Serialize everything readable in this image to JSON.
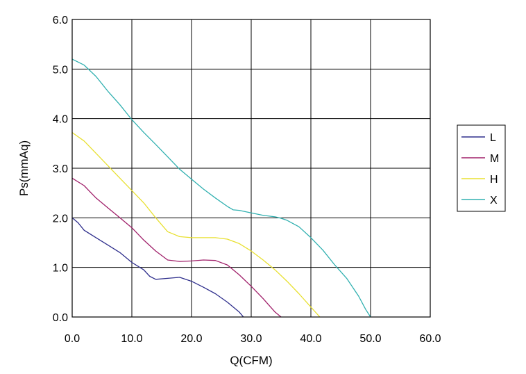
{
  "chart_data": {
    "type": "line",
    "xlabel": "Q(CFM)",
    "ylabel": "Ps(mmAq)",
    "xlim": [
      0,
      60
    ],
    "ylim": [
      0,
      6
    ],
    "xticks": [
      "0.0",
      "10.0",
      "20.0",
      "30.0",
      "40.0",
      "50.0",
      "60.0"
    ],
    "yticks": [
      "0.0",
      "1.0",
      "2.0",
      "3.0",
      "4.0",
      "5.0",
      "6.0"
    ],
    "grid": true,
    "legend_position": "right",
    "series": [
      {
        "name": "L",
        "color": "#2e2e8c",
        "points": [
          [
            0,
            2.0
          ],
          [
            1,
            1.9
          ],
          [
            2,
            1.75
          ],
          [
            4,
            1.6
          ],
          [
            6,
            1.45
          ],
          [
            8,
            1.3
          ],
          [
            10,
            1.1
          ],
          [
            12,
            0.95
          ],
          [
            13,
            0.82
          ],
          [
            14,
            0.76
          ],
          [
            16,
            0.78
          ],
          [
            18,
            0.8
          ],
          [
            20,
            0.72
          ],
          [
            22,
            0.6
          ],
          [
            24,
            0.47
          ],
          [
            26,
            0.3
          ],
          [
            28,
            0.1
          ],
          [
            28.7,
            0.0
          ]
        ]
      },
      {
        "name": "M",
        "color": "#a0206a",
        "points": [
          [
            0,
            2.8
          ],
          [
            2,
            2.65
          ],
          [
            4,
            2.4
          ],
          [
            6,
            2.2
          ],
          [
            8,
            2.0
          ],
          [
            10,
            1.8
          ],
          [
            12,
            1.55
          ],
          [
            14,
            1.33
          ],
          [
            16,
            1.15
          ],
          [
            18,
            1.12
          ],
          [
            20,
            1.13
          ],
          [
            22,
            1.15
          ],
          [
            24,
            1.14
          ],
          [
            26,
            1.05
          ],
          [
            28,
            0.85
          ],
          [
            30,
            0.62
          ],
          [
            32,
            0.37
          ],
          [
            34,
            0.1
          ],
          [
            35,
            0.0
          ]
        ]
      },
      {
        "name": "H",
        "color": "#e8e030",
        "points": [
          [
            0,
            3.72
          ],
          [
            2,
            3.55
          ],
          [
            4,
            3.3
          ],
          [
            6,
            3.05
          ],
          [
            8,
            2.8
          ],
          [
            10,
            2.55
          ],
          [
            12,
            2.3
          ],
          [
            14,
            2.0
          ],
          [
            16,
            1.72
          ],
          [
            18,
            1.62
          ],
          [
            20,
            1.6
          ],
          [
            22,
            1.6
          ],
          [
            24,
            1.6
          ],
          [
            26,
            1.57
          ],
          [
            28,
            1.48
          ],
          [
            30,
            1.33
          ],
          [
            32,
            1.15
          ],
          [
            34,
            0.95
          ],
          [
            36,
            0.72
          ],
          [
            38,
            0.47
          ],
          [
            40,
            0.2
          ],
          [
            41.5,
            0.0
          ]
        ]
      },
      {
        "name": "X",
        "color": "#30b0b0",
        "points": [
          [
            0,
            5.2
          ],
          [
            2,
            5.08
          ],
          [
            4,
            4.85
          ],
          [
            6,
            4.55
          ],
          [
            8,
            4.28
          ],
          [
            10,
            3.98
          ],
          [
            12,
            3.72
          ],
          [
            14,
            3.48
          ],
          [
            16,
            3.23
          ],
          [
            18,
            2.98
          ],
          [
            20,
            2.78
          ],
          [
            22,
            2.58
          ],
          [
            24,
            2.4
          ],
          [
            26,
            2.23
          ],
          [
            27,
            2.16
          ],
          [
            28,
            2.15
          ],
          [
            30,
            2.1
          ],
          [
            32,
            2.05
          ],
          [
            34,
            2.02
          ],
          [
            35,
            1.99
          ],
          [
            36,
            1.95
          ],
          [
            38,
            1.82
          ],
          [
            40,
            1.6
          ],
          [
            42,
            1.35
          ],
          [
            44,
            1.05
          ],
          [
            46,
            0.78
          ],
          [
            48,
            0.42
          ],
          [
            49.2,
            0.15
          ],
          [
            50,
            0.0
          ]
        ]
      }
    ]
  }
}
